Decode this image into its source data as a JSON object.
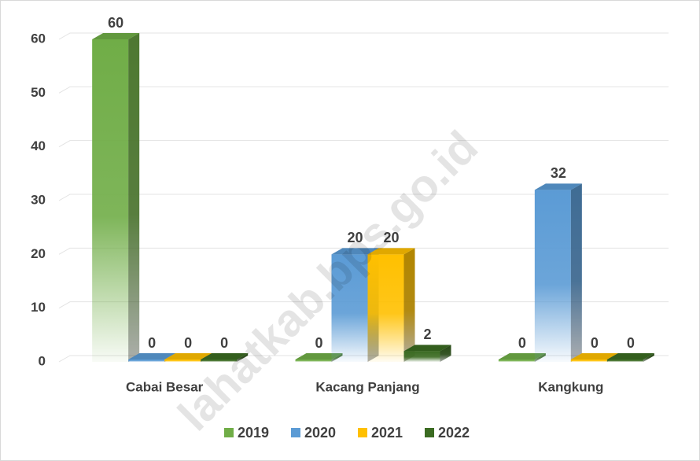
{
  "chart_data": {
    "type": "bar3d",
    "categories": [
      "Cabai Besar",
      "Kacang Panjang",
      "Kangkung"
    ],
    "series": [
      {
        "name": "2019",
        "color": "#70ad47",
        "values": [
          60,
          0,
          0
        ]
      },
      {
        "name": "2020",
        "color": "#5b9bd5",
        "values": [
          0,
          20,
          32
        ]
      },
      {
        "name": "2021",
        "color": "#ffc000",
        "values": [
          0,
          20,
          0
        ]
      },
      {
        "name": "2022",
        "color": "#3b6b22",
        "values": [
          0,
          2,
          0
        ]
      }
    ],
    "ylim": [
      0,
      60
    ],
    "yticks": [
      0,
      10,
      20,
      30,
      40,
      50,
      60
    ],
    "grid": true,
    "legend": "bottom",
    "watermark": "lahatkab.bps.go.id"
  }
}
